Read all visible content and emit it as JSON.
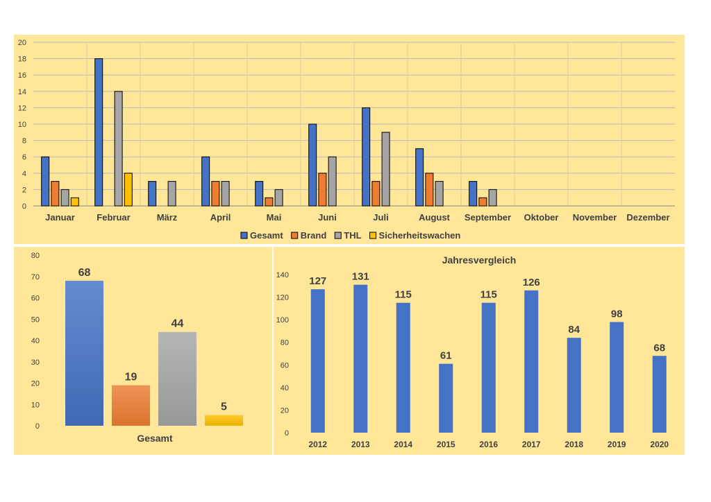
{
  "chart_data": [
    {
      "type": "bar",
      "categories": [
        "Januar",
        "Februar",
        "März",
        "April",
        "Mai",
        "Juni",
        "Juli",
        "August",
        "September",
        "Oktober",
        "November",
        "Dezember"
      ],
      "series": [
        {
          "name": "Gesamt",
          "color": "#4472c4",
          "values": [
            6,
            18,
            3,
            6,
            3,
            10,
            12,
            7,
            3,
            null,
            null,
            null
          ]
        },
        {
          "name": "Brand",
          "color": "#ed7d31",
          "values": [
            3,
            null,
            null,
            3,
            1,
            4,
            3,
            4,
            1,
            null,
            null,
            null
          ]
        },
        {
          "name": "THL",
          "color": "#a5a5a5",
          "values": [
            2,
            14,
            3,
            3,
            2,
            6,
            9,
            3,
            2,
            null,
            null,
            null
          ]
        },
        {
          "name": "Sicherheitswachen",
          "color": "#ffc000",
          "values": [
            1,
            4,
            null,
            null,
            null,
            null,
            null,
            null,
            null,
            null,
            null,
            null
          ]
        }
      ],
      "ylim": [
        0,
        20
      ],
      "yticks": [
        0,
        2,
        4,
        6,
        8,
        10,
        12,
        14,
        16,
        18,
        20
      ],
      "grid": true,
      "legend": "bottom"
    },
    {
      "type": "bar",
      "categories": [
        "Gesamt"
      ],
      "series": [
        {
          "color": "#4472c4",
          "values": [
            68
          ]
        },
        {
          "color": "#ed7d31",
          "values": [
            19
          ]
        },
        {
          "color": "#a5a5a5",
          "values": [
            44
          ]
        },
        {
          "color": "#ffc000",
          "values": [
            5
          ]
        }
      ],
      "ylim": [
        0,
        80
      ],
      "yticks": [
        0,
        10,
        20,
        30,
        40,
        50,
        60,
        70,
        80
      ],
      "grid": false,
      "data_labels": true
    },
    {
      "type": "bar",
      "title": "Jahresvergleich",
      "categories": [
        "2012",
        "2013",
        "2014",
        "2015",
        "2016",
        "2017",
        "2018",
        "2019",
        "2020"
      ],
      "values": [
        127,
        131,
        115,
        61,
        115,
        126,
        84,
        98,
        68
      ],
      "color": "#4472c4",
      "ylim": [
        0,
        140
      ],
      "yticks": [
        0,
        20,
        40,
        60,
        80,
        100,
        120,
        140
      ],
      "grid": false,
      "data_labels": true
    }
  ]
}
